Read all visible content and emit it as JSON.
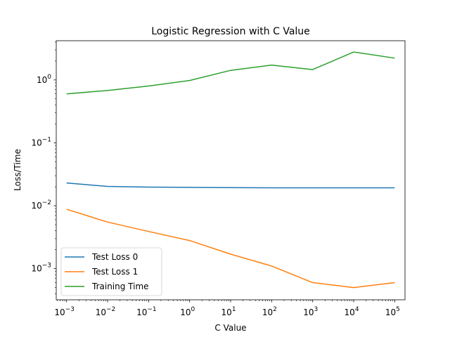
{
  "chart_data": {
    "type": "line",
    "title": "Logistic Regression with C Value",
    "xlabel": "C Value",
    "ylabel": "Loss/Time",
    "xscale": "log",
    "yscale": "log",
    "x": [
      0.001,
      0.01,
      0.1,
      1,
      10,
      100,
      1000,
      10000,
      100000
    ],
    "xlim": [
      0.00056,
      178000
    ],
    "ylim": [
      0.00032,
      4.2
    ],
    "xticks": [
      {
        "value": 0.001,
        "base": "10",
        "exp": "−3"
      },
      {
        "value": 0.01,
        "base": "10",
        "exp": "−2"
      },
      {
        "value": 0.1,
        "base": "10",
        "exp": "−1"
      },
      {
        "value": 1,
        "base": "10",
        "exp": "0"
      },
      {
        "value": 10,
        "base": "10",
        "exp": "1"
      },
      {
        "value": 100,
        "base": "10",
        "exp": "2"
      },
      {
        "value": 1000,
        "base": "10",
        "exp": "3"
      },
      {
        "value": 10000,
        "base": "10",
        "exp": "4"
      },
      {
        "value": 100000,
        "base": "10",
        "exp": "5"
      }
    ],
    "yticks": [
      {
        "value": 0.001,
        "base": "10",
        "exp": "−3"
      },
      {
        "value": 0.01,
        "base": "10",
        "exp": "−2"
      },
      {
        "value": 0.1,
        "base": "10",
        "exp": "−1"
      },
      {
        "value": 1,
        "base": "10",
        "exp": "0"
      }
    ],
    "grid": false,
    "legend": "lower left",
    "series": [
      {
        "name": "Test Loss 0",
        "color": "#1f77b4",
        "values": [
          0.023,
          0.0203,
          0.0198,
          0.0196,
          0.0194,
          0.0193,
          0.0193,
          0.0193,
          0.0193
        ]
      },
      {
        "name": "Test Loss 1",
        "color": "#ff7f0e",
        "values": [
          0.0088,
          0.0055,
          0.0039,
          0.0028,
          0.0017,
          0.0011,
          0.0006,
          0.0005,
          0.0006
        ]
      },
      {
        "name": "Training Time",
        "color": "#2ca02c",
        "values": [
          0.6,
          0.68,
          0.8,
          0.98,
          1.42,
          1.72,
          1.46,
          2.78,
          2.22
        ]
      }
    ]
  }
}
